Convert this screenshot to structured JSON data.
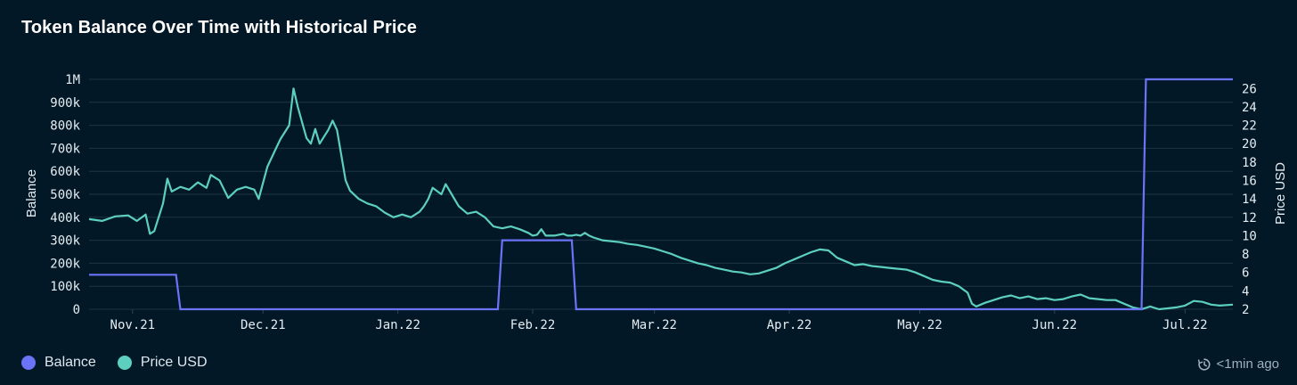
{
  "title": "Token Balance Over Time with Historical Price",
  "legend": [
    {
      "label": "Balance",
      "color": "#6b73f6"
    },
    {
      "label": "Price USD",
      "color": "#5ccfc0"
    }
  ],
  "updated": {
    "icon": "refresh-clock-icon",
    "text": "<1min ago"
  },
  "chart_data": {
    "type": "line",
    "x_axis": {
      "type": "date",
      "ticks": [
        "Nov.21",
        "Dec.21",
        "Jan.22",
        "Feb.22",
        "Mar.22",
        "Apr.22",
        "May.22",
        "Jun.22",
        "Jul.22"
      ],
      "range": [
        "2021-10-22",
        "2022-07-12"
      ]
    },
    "y_axis_left": {
      "label": "Balance",
      "range": [
        0,
        1000000
      ],
      "ticks": [
        "0",
        "100k",
        "200k",
        "300k",
        "400k",
        "500k",
        "600k",
        "700k",
        "800k",
        "900k",
        "1M"
      ]
    },
    "y_axis_right": {
      "label": "Price USD",
      "range": [
        2,
        27
      ],
      "ticks": [
        "2",
        "4",
        "6",
        "8",
        "10",
        "12",
        "14",
        "16",
        "18",
        "20",
        "22",
        "24",
        "26"
      ]
    },
    "grid": true,
    "legend_position": "bottom-left",
    "series": [
      {
        "name": "Balance",
        "axis": "left",
        "color": "#6b73f6",
        "step": true,
        "points": [
          [
            "2021-10-22",
            150000
          ],
          [
            "2021-11-11",
            150000
          ],
          [
            "2021-11-12",
            0
          ],
          [
            "2022-01-24",
            0
          ],
          [
            "2022-01-25",
            300000
          ],
          [
            "2022-02-10",
            300000
          ],
          [
            "2022-02-11",
            0
          ],
          [
            "2022-06-21",
            0
          ],
          [
            "2022-06-22",
            1000000
          ],
          [
            "2022-07-12",
            1000000
          ]
        ]
      },
      {
        "name": "Price USD",
        "axis": "right",
        "color": "#5ccfc0",
        "points": [
          [
            "2021-10-22",
            11.8
          ],
          [
            "2021-10-25",
            11.6
          ],
          [
            "2021-10-28",
            12.1
          ],
          [
            "2021-10-31",
            12.2
          ],
          [
            "2021-11-02",
            11.6
          ],
          [
            "2021-11-04",
            12.3
          ],
          [
            "2021-11-05",
            10.2
          ],
          [
            "2021-11-06",
            10.5
          ],
          [
            "2021-11-08",
            13.5
          ],
          [
            "2021-11-09",
            16.2
          ],
          [
            "2021-11-10",
            14.8
          ],
          [
            "2021-11-12",
            15.3
          ],
          [
            "2021-11-14",
            15.0
          ],
          [
            "2021-11-16",
            15.8
          ],
          [
            "2021-11-18",
            15.2
          ],
          [
            "2021-11-19",
            16.6
          ],
          [
            "2021-11-21",
            16.0
          ],
          [
            "2021-11-23",
            14.1
          ],
          [
            "2021-11-25",
            15.0
          ],
          [
            "2021-11-27",
            15.3
          ],
          [
            "2021-11-29",
            15.0
          ],
          [
            "2021-11-30",
            14.0
          ],
          [
            "2021-12-02",
            17.5
          ],
          [
            "2021-12-04",
            19.5
          ],
          [
            "2021-12-05",
            20.5
          ],
          [
            "2021-12-07",
            22.0
          ],
          [
            "2021-12-08",
            26.0
          ],
          [
            "2021-12-09",
            24.0
          ],
          [
            "2021-12-11",
            20.6
          ],
          [
            "2021-12-12",
            20.0
          ],
          [
            "2021-12-13",
            21.6
          ],
          [
            "2021-12-14",
            20.0
          ],
          [
            "2021-12-16",
            21.5
          ],
          [
            "2021-12-17",
            22.5
          ],
          [
            "2021-12-18",
            21.5
          ],
          [
            "2021-12-20",
            16.0
          ],
          [
            "2021-12-21",
            14.9
          ],
          [
            "2021-12-23",
            14.0
          ],
          [
            "2021-12-25",
            13.5
          ],
          [
            "2021-12-27",
            13.2
          ],
          [
            "2021-12-29",
            12.5
          ],
          [
            "2021-12-31",
            12.0
          ],
          [
            "2022-01-02",
            12.3
          ],
          [
            "2022-01-04",
            12.0
          ],
          [
            "2022-01-06",
            12.6
          ],
          [
            "2022-01-07",
            13.2
          ],
          [
            "2022-01-08",
            14.0
          ],
          [
            "2022-01-09",
            15.2
          ],
          [
            "2022-01-11",
            14.5
          ],
          [
            "2022-01-12",
            15.6
          ],
          [
            "2022-01-14",
            14.0
          ],
          [
            "2022-01-15",
            13.2
          ],
          [
            "2022-01-17",
            12.4
          ],
          [
            "2022-01-19",
            12.6
          ],
          [
            "2022-01-21",
            12.0
          ],
          [
            "2022-01-23",
            11.0
          ],
          [
            "2022-01-25",
            10.8
          ],
          [
            "2022-01-27",
            11.0
          ],
          [
            "2022-01-29",
            10.7
          ],
          [
            "2022-01-31",
            10.3
          ],
          [
            "2022-02-01",
            10.0
          ],
          [
            "2022-02-02",
            10.1
          ],
          [
            "2022-02-03",
            10.7
          ],
          [
            "2022-02-04",
            10.0
          ],
          [
            "2022-02-06",
            10.0
          ],
          [
            "2022-02-08",
            10.2
          ],
          [
            "2022-02-09",
            10.0
          ],
          [
            "2022-02-10",
            10.0
          ],
          [
            "2022-02-11",
            10.1
          ],
          [
            "2022-02-12",
            10.0
          ],
          [
            "2022-02-13",
            10.3
          ],
          [
            "2022-02-14",
            10.0
          ],
          [
            "2022-02-15",
            9.8
          ],
          [
            "2022-02-17",
            9.5
          ],
          [
            "2022-02-19",
            9.4
          ],
          [
            "2022-02-21",
            9.3
          ],
          [
            "2022-02-23",
            9.1
          ],
          [
            "2022-02-25",
            9.0
          ],
          [
            "2022-02-27",
            8.8
          ],
          [
            "2022-03-01",
            8.6
          ],
          [
            "2022-03-03",
            8.3
          ],
          [
            "2022-03-05",
            8.0
          ],
          [
            "2022-03-07",
            7.6
          ],
          [
            "2022-03-09",
            7.3
          ],
          [
            "2022-03-11",
            7.0
          ],
          [
            "2022-03-13",
            6.8
          ],
          [
            "2022-03-15",
            6.5
          ],
          [
            "2022-03-17",
            6.3
          ],
          [
            "2022-03-19",
            6.1
          ],
          [
            "2022-03-21",
            6.0
          ],
          [
            "2022-03-23",
            5.8
          ],
          [
            "2022-03-25",
            5.9
          ],
          [
            "2022-03-27",
            6.2
          ],
          [
            "2022-03-29",
            6.5
          ],
          [
            "2022-03-31",
            7.0
          ],
          [
            "2022-04-02",
            7.4
          ],
          [
            "2022-04-04",
            7.8
          ],
          [
            "2022-04-06",
            8.2
          ],
          [
            "2022-04-08",
            8.5
          ],
          [
            "2022-04-10",
            8.4
          ],
          [
            "2022-04-12",
            7.6
          ],
          [
            "2022-04-14",
            7.2
          ],
          [
            "2022-04-16",
            6.8
          ],
          [
            "2022-04-18",
            6.9
          ],
          [
            "2022-04-20",
            6.7
          ],
          [
            "2022-04-22",
            6.6
          ],
          [
            "2022-04-24",
            6.5
          ],
          [
            "2022-04-26",
            6.4
          ],
          [
            "2022-04-28",
            6.3
          ],
          [
            "2022-04-30",
            6.0
          ],
          [
            "2022-05-02",
            5.6
          ],
          [
            "2022-05-04",
            5.2
          ],
          [
            "2022-05-06",
            5.0
          ],
          [
            "2022-05-08",
            4.9
          ],
          [
            "2022-05-10",
            4.5
          ],
          [
            "2022-05-12",
            3.8
          ],
          [
            "2022-05-13",
            2.6
          ],
          [
            "2022-05-14",
            2.3
          ],
          [
            "2022-05-16",
            2.7
          ],
          [
            "2022-05-18",
            3.0
          ],
          [
            "2022-05-20",
            3.3
          ],
          [
            "2022-05-22",
            3.5
          ],
          [
            "2022-05-24",
            3.2
          ],
          [
            "2022-05-26",
            3.4
          ],
          [
            "2022-05-28",
            3.1
          ],
          [
            "2022-05-30",
            3.2
          ],
          [
            "2022-06-01",
            3.0
          ],
          [
            "2022-06-03",
            3.1
          ],
          [
            "2022-06-05",
            3.4
          ],
          [
            "2022-06-07",
            3.6
          ],
          [
            "2022-06-09",
            3.2
          ],
          [
            "2022-06-11",
            3.1
          ],
          [
            "2022-06-13",
            3.0
          ],
          [
            "2022-06-15",
            3.0
          ],
          [
            "2022-06-17",
            2.6
          ],
          [
            "2022-06-19",
            2.2
          ],
          [
            "2022-06-21",
            2.0
          ],
          [
            "2022-06-23",
            2.3
          ],
          [
            "2022-06-25",
            2.0
          ],
          [
            "2022-06-27",
            2.1
          ],
          [
            "2022-06-29",
            2.2
          ],
          [
            "2022-07-01",
            2.4
          ],
          [
            "2022-07-03",
            2.9
          ],
          [
            "2022-07-05",
            2.8
          ],
          [
            "2022-07-07",
            2.5
          ],
          [
            "2022-07-09",
            2.4
          ],
          [
            "2022-07-12",
            2.5
          ]
        ]
      }
    ]
  }
}
